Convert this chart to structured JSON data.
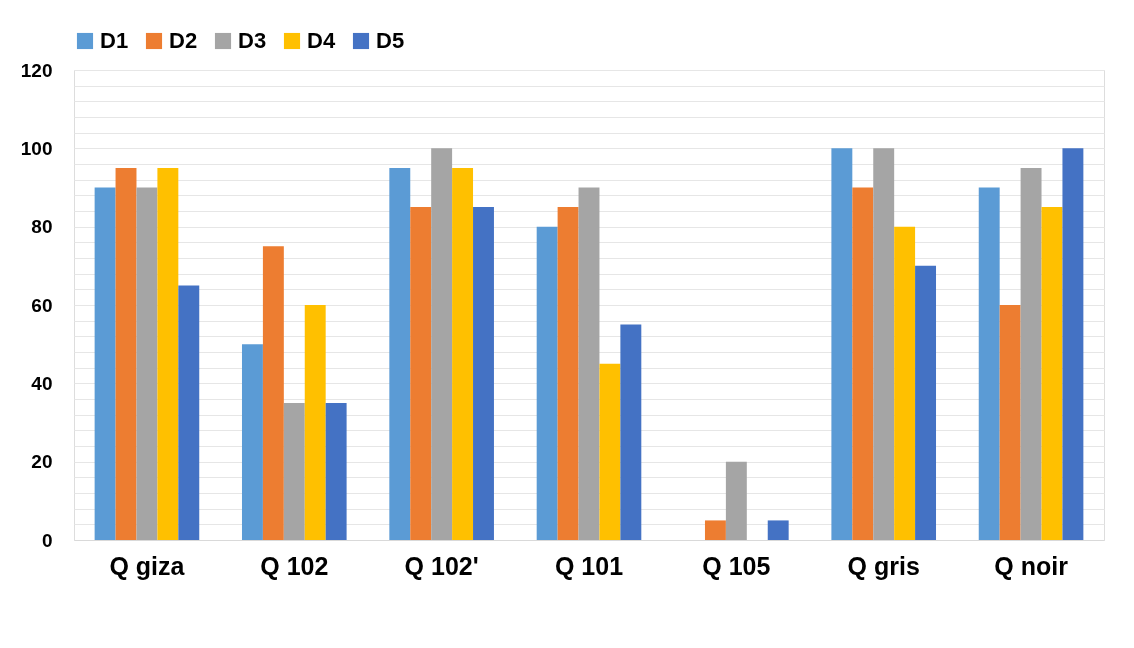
{
  "chart_data": {
    "type": "bar",
    "categories": [
      "Q giza",
      "Q 102",
      "Q 102'",
      "Q 101",
      "Q 105",
      "Q gris",
      "Q noir"
    ],
    "series": [
      {
        "name": "D1",
        "color": "#5b9bd5",
        "values": [
          90,
          50,
          95,
          80,
          0,
          100,
          90
        ]
      },
      {
        "name": "D2",
        "color": "#ed7d31",
        "values": [
          95,
          75,
          85,
          85,
          5,
          90,
          60
        ]
      },
      {
        "name": "D3",
        "color": "#a5a5a5",
        "values": [
          90,
          35,
          100,
          90,
          20,
          100,
          95
        ]
      },
      {
        "name": "D4",
        "color": "#ffc000",
        "values": [
          95,
          60,
          95,
          45,
          0,
          80,
          85
        ]
      },
      {
        "name": "D5",
        "color": "#4472c4",
        "values": [
          65,
          35,
          85,
          55,
          5,
          70,
          100
        ]
      }
    ],
    "ylim": [
      0,
      120
    ],
    "yticks": [
      0,
      {
        "value": 4,
        "label": null
      },
      {
        "value": 8,
        "label": null
      },
      {
        "value": 12,
        "label": null
      },
      {
        "value": 16,
        "label": null
      },
      20,
      {
        "value": 24,
        "label": null
      },
      {
        "value": 28,
        "label": null
      },
      {
        "value": 32,
        "label": null
      },
      {
        "value": 36,
        "label": null
      },
      40,
      {
        "value": 44,
        "label": null
      },
      {
        "value": 48,
        "label": null
      },
      {
        "value": 52,
        "label": null
      },
      {
        "value": 56,
        "label": null
      },
      60,
      {
        "value": 64,
        "label": null
      },
      {
        "value": 68,
        "label": null
      },
      {
        "value": 72,
        "label": null
      },
      {
        "value": 76,
        "label": null
      },
      80,
      {
        "value": 84,
        "label": null
      },
      {
        "value": 88,
        "label": null
      },
      {
        "value": 92,
        "label": null
      },
      {
        "value": 96,
        "label": null
      },
      100,
      {
        "value": 104,
        "label": null
      },
      {
        "value": 108,
        "label": null
      },
      {
        "value": 112,
        "label": null
      },
      {
        "value": 116,
        "label": null
      },
      120
    ],
    "grid": "y",
    "legend": "top"
  }
}
